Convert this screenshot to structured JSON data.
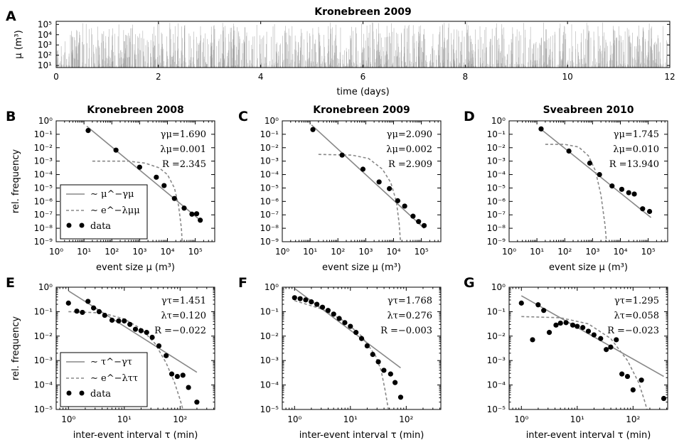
{
  "colors": {
    "fit_line": "#888888",
    "data_point": "#000000",
    "timeseries": "#909090"
  },
  "chart_data": [
    {
      "id": "A",
      "panel_label": "A",
      "type": "bar",
      "title": "Kronebreen 2009",
      "xlabel": "time (days)",
      "ylabel": "μ (m³)",
      "xlim": [
        0,
        12
      ],
      "xticks": [
        0,
        2,
        4,
        6,
        8,
        10,
        12
      ],
      "ylog": true,
      "ylim_exp": [
        0.8,
        5.3
      ],
      "yticks": [
        "10¹",
        "10²",
        "10³",
        "10⁴",
        "10⁵"
      ],
      "n_events": 1700,
      "value_range_exp": [
        0.8,
        5.2
      ]
    },
    {
      "id": "B",
      "panel_label": "B",
      "type": "scatter",
      "title": "Kronebreen 2008",
      "xlabel": "event size μ (m³)",
      "ylabel": "rel. frequency",
      "xlim_exp": [
        0,
        5.7
      ],
      "ylim_exp": [
        -9,
        0
      ],
      "xticks": [
        "10⁰",
        "10¹",
        "10²",
        "10³",
        "10⁴",
        "10⁵"
      ],
      "yticks": [
        "10⁰",
        "10⁻¹",
        "10⁻²",
        "10⁻³",
        "10⁻⁴",
        "10⁻⁵",
        "10⁻⁶",
        "10⁻⁷",
        "10⁻⁸",
        "10⁻⁹"
      ],
      "points": [
        [
          1.15,
          -0.72
        ],
        [
          2.15,
          -2.18
        ],
        [
          3.0,
          -3.45
        ],
        [
          3.6,
          -4.2
        ],
        [
          3.88,
          -4.82
        ],
        [
          4.25,
          -5.78
        ],
        [
          4.6,
          -6.5
        ],
        [
          4.88,
          -6.95
        ],
        [
          5.05,
          -6.92
        ],
        [
          5.18,
          -7.4
        ]
      ],
      "powerlaw": [
        [
          1.1,
          -0.4
        ],
        [
          5.18,
          -7.4
        ]
      ],
      "exponential": [
        [
          1.3,
          -3.0
        ],
        [
          2.6,
          -3.0
        ],
        [
          3.2,
          -3.15
        ],
        [
          3.7,
          -3.5
        ],
        [
          4.0,
          -4.0
        ],
        [
          4.25,
          -5.0
        ],
        [
          4.4,
          -6.3
        ],
        [
          4.5,
          -8.0
        ],
        [
          4.53,
          -9.0
        ]
      ],
      "annotations": [
        "γμ=1.690",
        "λμ=0.001",
        "R =2.345"
      ],
      "legend": {
        "location": "lower-left",
        "entries": [
          "∼ μ^−γμ",
          "∼ e^−λμμ",
          "data"
        ]
      }
    },
    {
      "id": "C",
      "panel_label": "C",
      "type": "scatter",
      "title": "Kronebreen 2009",
      "xlabel": "event size μ (m³)",
      "ylabel": "",
      "xlim_exp": [
        0,
        5.7
      ],
      "ylim_exp": [
        -9,
        0
      ],
      "xticks": [
        "10⁰",
        "10¹",
        "10²",
        "10³",
        "10⁴",
        "10⁵"
      ],
      "yticks": [
        "10⁰",
        "10⁻¹",
        "10⁻²",
        "10⁻³",
        "10⁻⁴",
        "10⁻⁵",
        "10⁻⁶",
        "10⁻⁷",
        "10⁻⁸",
        "10⁻⁹"
      ],
      "points": [
        [
          1.1,
          -0.65
        ],
        [
          2.15,
          -2.55
        ],
        [
          2.9,
          -3.6
        ],
        [
          3.48,
          -4.55
        ],
        [
          3.85,
          -5.05
        ],
        [
          4.15,
          -5.95
        ],
        [
          4.4,
          -6.35
        ],
        [
          4.7,
          -7.1
        ],
        [
          4.9,
          -7.5
        ],
        [
          5.1,
          -7.8
        ]
      ],
      "powerlaw": [
        [
          1.05,
          -0.3
        ],
        [
          5.1,
          -8.0
        ]
      ],
      "exponential": [
        [
          1.3,
          -2.5
        ],
        [
          2.5,
          -2.55
        ],
        [
          3.1,
          -2.8
        ],
        [
          3.6,
          -3.6
        ],
        [
          3.9,
          -4.6
        ],
        [
          4.1,
          -6.0
        ],
        [
          4.2,
          -7.6
        ],
        [
          4.25,
          -9.0
        ]
      ],
      "annotations": [
        "γμ=2.090",
        "λμ=0.002",
        "R =2.909"
      ],
      "legend": null
    },
    {
      "id": "D",
      "panel_label": "D",
      "type": "scatter",
      "title": "Sveabreen 2010",
      "xlabel": "event size μ (m³)",
      "ylabel": "",
      "xlim_exp": [
        0,
        5.7
      ],
      "ylim_exp": [
        -9,
        0
      ],
      "xticks": [
        "10⁰",
        "10¹",
        "10²",
        "10³",
        "10⁴",
        "10⁵"
      ],
      "yticks": [
        "10⁰",
        "10⁻¹",
        "10⁻²",
        "10⁻³",
        "10⁻⁴",
        "10⁻⁵",
        "10⁻⁶",
        "10⁻⁷",
        "10⁻⁸",
        "10⁻⁹"
      ],
      "points": [
        [
          1.15,
          -0.6
        ],
        [
          2.15,
          -2.25
        ],
        [
          2.9,
          -3.15
        ],
        [
          3.25,
          -4.0
        ],
        [
          3.7,
          -4.85
        ],
        [
          4.05,
          -5.1
        ],
        [
          4.3,
          -5.35
        ],
        [
          4.5,
          -5.45
        ],
        [
          4.8,
          -6.55
        ],
        [
          5.05,
          -6.75
        ]
      ],
      "powerlaw": [
        [
          1.1,
          -0.55
        ],
        [
          5.1,
          -7.2
        ]
      ],
      "exponential": [
        [
          1.3,
          -1.75
        ],
        [
          2.0,
          -1.75
        ],
        [
          2.5,
          -1.95
        ],
        [
          2.85,
          -2.6
        ],
        [
          3.1,
          -3.7
        ],
        [
          3.3,
          -5.5
        ],
        [
          3.45,
          -7.8
        ],
        [
          3.5,
          -9.0
        ]
      ],
      "annotations": [
        "γμ=1.745",
        "λμ=0.010",
        "R =13.940"
      ],
      "legend": null
    },
    {
      "id": "E",
      "panel_label": "E",
      "type": "scatter",
      "title": "",
      "xlabel": "inter-event interval τ (min)",
      "ylabel": "rel. frequency",
      "xlim_exp": [
        -0.22,
        2.62
      ],
      "ylim_exp": [
        -5,
        0
      ],
      "xticks": [
        "10⁰",
        "10¹",
        "10²"
      ],
      "yticks": [
        "10⁰",
        "10⁻¹",
        "10⁻²",
        "10⁻³",
        "10⁻⁴",
        "10⁻⁵"
      ],
      "points": [
        [
          0.0,
          -0.65
        ],
        [
          0.15,
          -0.98
        ],
        [
          0.25,
          -1.03
        ],
        [
          0.35,
          -0.58
        ],
        [
          0.45,
          -0.85
        ],
        [
          0.55,
          -1.0
        ],
        [
          0.65,
          -1.15
        ],
        [
          0.78,
          -1.35
        ],
        [
          0.9,
          -1.38
        ],
        [
          1.0,
          -1.38
        ],
        [
          1.1,
          -1.52
        ],
        [
          1.2,
          -1.72
        ],
        [
          1.3,
          -1.78
        ],
        [
          1.4,
          -1.85
        ],
        [
          1.5,
          -2.05
        ],
        [
          1.62,
          -2.4
        ],
        [
          1.75,
          -2.8
        ],
        [
          1.85,
          -3.55
        ],
        [
          1.95,
          -3.65
        ],
        [
          2.05,
          -3.6
        ],
        [
          2.15,
          -4.1
        ],
        [
          2.3,
          -4.7
        ]
      ],
      "powerlaw": [
        [
          0.0,
          -0.15
        ],
        [
          2.3,
          -3.48
        ]
      ],
      "exponential": [
        [
          0.0,
          -1.0
        ],
        [
          0.6,
          -1.05
        ],
        [
          1.0,
          -1.3
        ],
        [
          1.3,
          -1.7
        ],
        [
          1.55,
          -2.3
        ],
        [
          1.75,
          -3.1
        ],
        [
          1.9,
          -3.9
        ],
        [
          2.0,
          -4.6
        ],
        [
          2.05,
          -5.0
        ]
      ],
      "annotations": [
        "γτ=1.451",
        "λτ=0.120",
        "R =−0.022"
      ],
      "legend": {
        "location": "lower-left",
        "entries": [
          "∼ τ^−γτ",
          "∼ e^−λττ",
          "data"
        ]
      }
    },
    {
      "id": "F",
      "panel_label": "F",
      "type": "scatter",
      "title": "",
      "xlabel": "inter-event interval τ (min)",
      "ylabel": "",
      "xlim_exp": [
        -0.22,
        2.62
      ],
      "ylim_exp": [
        -5,
        0
      ],
      "xticks": [
        "10⁰",
        "10¹",
        "10²"
      ],
      "yticks": [
        "10⁰",
        "10⁻¹",
        "10⁻²",
        "10⁻³",
        "10⁻⁴",
        "10⁻⁵"
      ],
      "points": [
        [
          0.0,
          -0.43
        ],
        [
          0.1,
          -0.47
        ],
        [
          0.2,
          -0.52
        ],
        [
          0.3,
          -0.6
        ],
        [
          0.4,
          -0.7
        ],
        [
          0.5,
          -0.82
        ],
        [
          0.6,
          -0.95
        ],
        [
          0.7,
          -1.1
        ],
        [
          0.8,
          -1.28
        ],
        [
          0.9,
          -1.45
        ],
        [
          1.0,
          -1.6
        ],
        [
          1.1,
          -1.85
        ],
        [
          1.2,
          -2.1
        ],
        [
          1.3,
          -2.4
        ],
        [
          1.4,
          -2.75
        ],
        [
          1.5,
          -3.05
        ],
        [
          1.6,
          -3.4
        ],
        [
          1.72,
          -3.55
        ],
        [
          1.8,
          -3.9
        ],
        [
          1.9,
          -4.5
        ]
      ],
      "powerlaw": [
        [
          0.0,
          -0.05
        ],
        [
          1.9,
          -3.3
        ]
      ],
      "exponential": [
        [
          0.0,
          -0.55
        ],
        [
          0.5,
          -0.9
        ],
        [
          0.9,
          -1.4
        ],
        [
          1.2,
          -2.0
        ],
        [
          1.45,
          -2.8
        ],
        [
          1.55,
          -3.4
        ],
        [
          1.62,
          -4.2
        ],
        [
          1.68,
          -5.0
        ]
      ],
      "annotations": [
        "γτ=1.768",
        "λτ=0.276",
        "R =−0.003"
      ],
      "legend": null
    },
    {
      "id": "G",
      "panel_label": "G",
      "type": "scatter",
      "title": "",
      "xlabel": "inter-event interval τ (min)",
      "ylabel": "",
      "xlim_exp": [
        -0.22,
        2.62
      ],
      "ylim_exp": [
        -5,
        0
      ],
      "xticks": [
        "10⁰",
        "10¹",
        "10²"
      ],
      "yticks": [
        "10⁰",
        "10⁻¹",
        "10⁻²",
        "10⁻³",
        "10⁻⁴",
        "10⁻⁵"
      ],
      "points": [
        [
          0.0,
          -0.65
        ],
        [
          0.2,
          -2.15
        ],
        [
          0.3,
          -0.72
        ],
        [
          0.4,
          -0.95
        ],
        [
          0.5,
          -1.85
        ],
        [
          0.62,
          -1.55
        ],
        [
          0.7,
          -1.47
        ],
        [
          0.8,
          -1.45
        ],
        [
          0.92,
          -1.55
        ],
        [
          1.0,
          -1.6
        ],
        [
          1.1,
          -1.65
        ],
        [
          1.2,
          -1.8
        ],
        [
          1.3,
          -1.95
        ],
        [
          1.42,
          -2.1
        ],
        [
          1.52,
          -2.55
        ],
        [
          1.6,
          -2.45
        ],
        [
          1.7,
          -2.15
        ],
        [
          1.8,
          -3.55
        ],
        [
          1.9,
          -3.65
        ],
        [
          2.0,
          -4.2
        ],
        [
          2.15,
          -3.8
        ],
        [
          2.55,
          -4.55
        ]
      ],
      "powerlaw": [
        [
          0.0,
          -0.35
        ],
        [
          2.55,
          -3.65
        ]
      ],
      "exponential": [
        [
          0.0,
          -1.2
        ],
        [
          0.7,
          -1.25
        ],
        [
          1.2,
          -1.5
        ],
        [
          1.6,
          -2.1
        ],
        [
          1.9,
          -3.0
        ],
        [
          2.1,
          -3.9
        ],
        [
          2.2,
          -4.6
        ],
        [
          2.25,
          -5.0
        ]
      ],
      "annotations": [
        "γτ=1.295",
        "λτ=0.058",
        "R =−0.023"
      ],
      "legend": null
    }
  ]
}
